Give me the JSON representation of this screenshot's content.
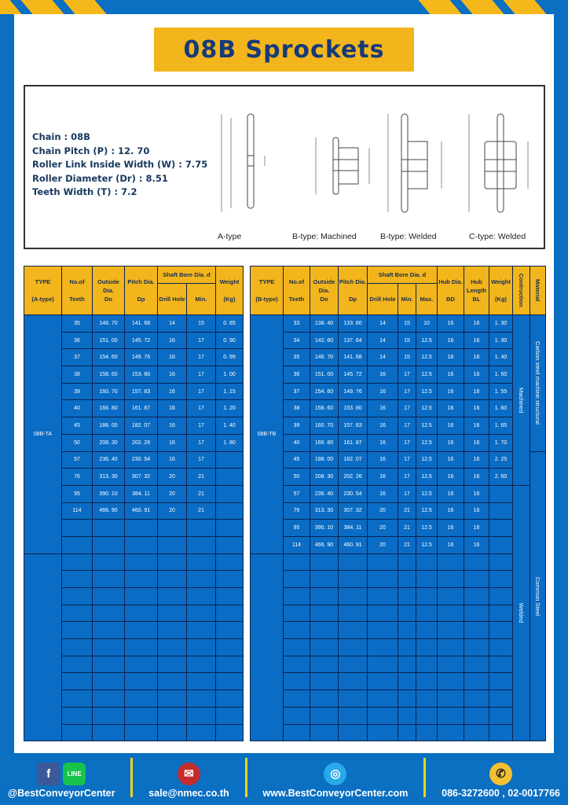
{
  "title": "08B Sprockets",
  "specs": [
    "Chain  : 08B",
    "Chain Pitch (P)  :  12. 70",
    "Roller Link Inside Width (W)  :  7.75",
    "Roller Diameter (Dr)  : 8.51",
    "Teeth Width (T)  :  7.2"
  ],
  "diagram_labels": [
    "A-type",
    "B-type: Machined",
    "B-type: Welded",
    "C-type: Welded"
  ],
  "table_a": {
    "headers": {
      "type": [
        "TYPE",
        "(A-type)"
      ],
      "teeth": [
        "No.of",
        "Teeth"
      ],
      "outside": [
        "Outside",
        "Dia.",
        "Do"
      ],
      "pitch": [
        "Pitch Dia.",
        "Dp"
      ],
      "shaft": "Shaft Bore Dia. d",
      "drill": "Drill Hole",
      "min": "Min.",
      "weight": [
        "Weight",
        "(Kg)"
      ]
    },
    "type_label": "08B-TA",
    "rows": [
      [
        "35",
        "146. 70",
        "141. 68",
        "14",
        "15",
        "0. 85"
      ],
      [
        "36",
        "151. 00",
        "145. 72",
        "16",
        "17",
        "0. 90"
      ],
      [
        "37",
        "154. 60",
        "149. 76",
        "16",
        "17",
        "0. 99"
      ],
      [
        "38",
        "158. 60",
        "153. 80",
        "16",
        "17",
        "1. 00"
      ],
      [
        "39",
        "160. 70",
        "157. 83",
        "16",
        "17",
        "1. 15"
      ],
      [
        "40",
        "166. 80",
        "161. 87",
        "16",
        "17",
        "1. 20"
      ],
      [
        "45",
        "188. 00",
        "182. 07",
        "16",
        "17",
        "1. 40"
      ],
      [
        "50",
        "208. 30",
        "202. 26",
        "16",
        "17",
        "1. 80"
      ],
      [
        "57",
        "236. 40",
        "230. 54",
        "16",
        "17",
        ""
      ],
      [
        "76",
        "313. 30",
        "307. 32",
        "20",
        "21",
        ""
      ],
      [
        "95",
        "390. 10",
        "384. 11",
        "20",
        "21",
        ""
      ],
      [
        "114",
        "466. 90",
        "460. 91",
        "20",
        "21",
        ""
      ]
    ]
  },
  "table_b": {
    "headers": {
      "type": [
        "TYPE",
        "(B-type)"
      ],
      "teeth": [
        "No.of",
        "Teeth"
      ],
      "outside": [
        "Outside",
        "Dia.",
        "Do"
      ],
      "pitch": [
        "Pitch Dia.",
        "Dp"
      ],
      "shaft": "Shaft Bore Dia. d",
      "drill": "Drill Hole",
      "min": "Min.",
      "max": "Max.",
      "hubdia": [
        "Hub Dia.",
        "BD"
      ],
      "hublen": [
        "Hub",
        "Length",
        "BL"
      ],
      "weight": [
        "Weight",
        "(Kg)"
      ],
      "construction": "Contruction",
      "material": "Material"
    },
    "type_label": "08B-TB",
    "construction": [
      "Machined",
      "Welded"
    ],
    "material": [
      "Carbon steel  machine structural",
      "Common Steel"
    ],
    "rows": [
      [
        "33",
        "138. 40",
        "133. 60",
        "14",
        "15",
        "10",
        "16",
        "16",
        "1. 30"
      ],
      [
        "34",
        "142. 60",
        "137. 64",
        "14",
        "15",
        "12.5",
        "16",
        "16",
        "1. 30"
      ],
      [
        "35",
        "146. 70",
        "141. 68",
        "14",
        "15",
        "12.5",
        "16",
        "16",
        "1. 40"
      ],
      [
        "36",
        "151. 00",
        "145. 72",
        "16",
        "17",
        "12.5",
        "16",
        "16",
        "1. 50"
      ],
      [
        "37",
        "154. 60",
        "149. 76",
        "16",
        "17",
        "12.5",
        "16",
        "16",
        "1. 55"
      ],
      [
        "38",
        "158. 60",
        "153. 80",
        "16",
        "17",
        "12.5",
        "16",
        "16",
        "1. 60"
      ],
      [
        "39",
        "160. 70",
        "157. 83",
        "16",
        "17",
        "12.5",
        "16",
        "16",
        "1. 65"
      ],
      [
        "40",
        "166. 80",
        "161. 87",
        "16",
        "17",
        "12.5",
        "16",
        "16",
        "1. 70"
      ],
      [
        "45",
        "188. 00",
        "182. 07",
        "16",
        "17",
        "12.5",
        "16",
        "16",
        "2. 25"
      ],
      [
        "50",
        "208. 30",
        "202. 26",
        "16",
        "17",
        "12.5",
        "16",
        "16",
        "2. 60"
      ],
      [
        "57",
        "236. 40",
        "230. 54",
        "16",
        "17",
        "12.5",
        "16",
        "16",
        ""
      ],
      [
        "76",
        "313. 30",
        "307. 32",
        "20",
        "21",
        "12.5",
        "16",
        "16",
        ""
      ],
      [
        "95",
        "390. 10",
        "384. 11",
        "20",
        "21",
        "12.5",
        "16",
        "16",
        ""
      ],
      [
        "114",
        "466. 90",
        "460. 91",
        "20",
        "21",
        "12.5",
        "16",
        "16",
        ""
      ]
    ]
  },
  "footer": {
    "social": "@BestConveyorCenter",
    "line_icon": "LINE",
    "email": "sale@nmec.co.th",
    "website": "www.BestConveyorCenter.com",
    "phone": "086-3272600 , 02-0017766"
  },
  "colors": {
    "brand_blue": "#0b6fc2",
    "accent_yellow": "#f3b51c",
    "title_text": "#163a7a"
  }
}
